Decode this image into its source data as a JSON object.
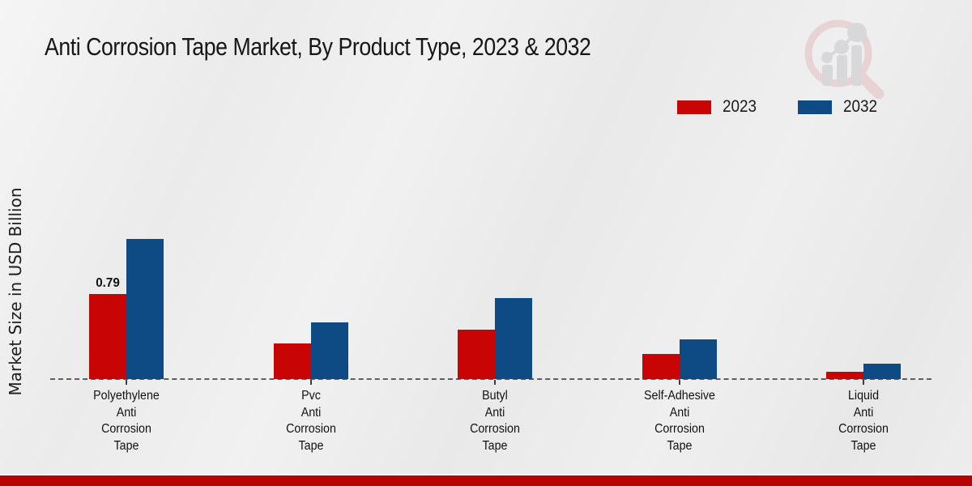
{
  "page": {
    "title": "Anti Corrosion Tape Market, By Product Type, 2023 & 2032",
    "ylabel": "Market Size in USD Billion"
  },
  "legend": {
    "items": [
      {
        "label": "2023",
        "color": "#c80404"
      },
      {
        "label": "2032",
        "color": "#0e4b85"
      }
    ]
  },
  "colors": {
    "series_2023": "#c80404",
    "series_2032": "#0e4b85",
    "footer_strip": "#b80301",
    "axis_dash": "#5f5f5f",
    "text": "#111111"
  },
  "watermark": {
    "icon": "magnifier-growth-chart-logo"
  },
  "chart_data": {
    "type": "bar",
    "title": "Anti Corrosion Tape Market, By Product Type, 2023 & 2032",
    "xlabel": "",
    "ylabel": "Market Size in USD Billion",
    "ylim": [
      0,
      1.45
    ],
    "grid": false,
    "legend_position": "top-right",
    "baseline_style": "dashed",
    "categories": [
      "Polyethylene Anti Corrosion Tape",
      "Pvc Anti Corrosion Tape",
      "Butyl Anti Corrosion Tape",
      "Self-Adhesive Anti Corrosion Tape",
      "Liquid Anti Corrosion Tape"
    ],
    "category_lines": [
      [
        "Polyethylene",
        "Anti",
        "Corrosion",
        "Tape"
      ],
      [
        "Pvc",
        "Anti",
        "Corrosion",
        "Tape"
      ],
      [
        "Butyl",
        "Anti",
        "Corrosion",
        "Tape"
      ],
      [
        "Self-Adhesive",
        "Anti",
        "Corrosion",
        "Tape"
      ],
      [
        "Liquid",
        "Anti",
        "Corrosion",
        "Tape"
      ]
    ],
    "series": [
      {
        "name": "2023",
        "color": "#c80404",
        "values": [
          0.79,
          0.33,
          0.46,
          0.23,
          0.07
        ]
      },
      {
        "name": "2032",
        "color": "#0e4b85",
        "values": [
          1.3,
          0.53,
          0.75,
          0.37,
          0.14
        ]
      }
    ],
    "data_labels": [
      {
        "series_index": 0,
        "category_index": 0,
        "text": "0.79"
      }
    ]
  }
}
